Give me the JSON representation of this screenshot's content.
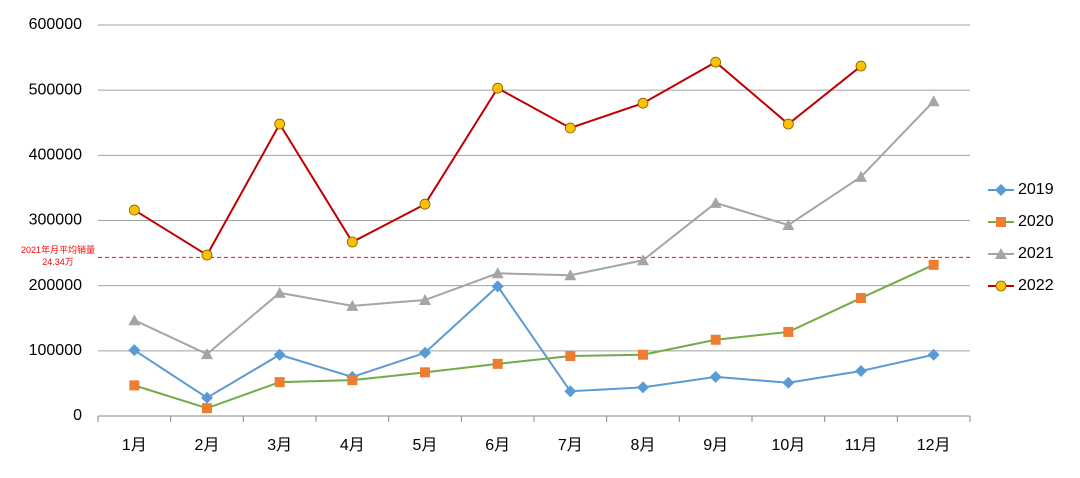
{
  "chart_data": {
    "type": "line",
    "categories": [
      "1月",
      "2月",
      "3月",
      "4月",
      "5月",
      "6月",
      "7月",
      "8月",
      "9月",
      "10月",
      "11月",
      "12月"
    ],
    "series": [
      {
        "name": "2019",
        "color": "#5b9bd5",
        "marker": "diamond",
        "marker_color": "#5b9bd5",
        "values": [
          101000,
          28000,
          94000,
          60000,
          97000,
          199000,
          38000,
          44000,
          60000,
          51000,
          69000,
          94000
        ]
      },
      {
        "name": "2020",
        "color": "#70ad47",
        "marker": "square",
        "marker_color": "#ed7d31",
        "values": [
          47000,
          12000,
          52000,
          55000,
          67000,
          80000,
          92000,
          94000,
          117000,
          129000,
          181000,
          232000
        ]
      },
      {
        "name": "2021",
        "color": "#a5a5a5",
        "marker": "triangle",
        "marker_color": "#a5a5a5",
        "values": [
          147000,
          95000,
          189000,
          169000,
          178000,
          219000,
          216000,
          239000,
          327000,
          293000,
          367000,
          483000
        ]
      },
      {
        "name": "2022",
        "color": "#c00000",
        "marker": "circle",
        "marker_color": "#ffc000",
        "values": [
          316000,
          247000,
          448000,
          267000,
          325000,
          503000,
          442000,
          480000,
          543000,
          448000,
          537000,
          null
        ]
      }
    ],
    "ylim": [
      0,
      600000
    ],
    "yticks": [
      0,
      100000,
      200000,
      300000,
      400000,
      500000,
      600000
    ],
    "grid": true,
    "legend": "right",
    "reference_line": {
      "value": 243400,
      "label": "24.34万",
      "text": "2021年月平均销量",
      "color": "#ff0000"
    }
  }
}
